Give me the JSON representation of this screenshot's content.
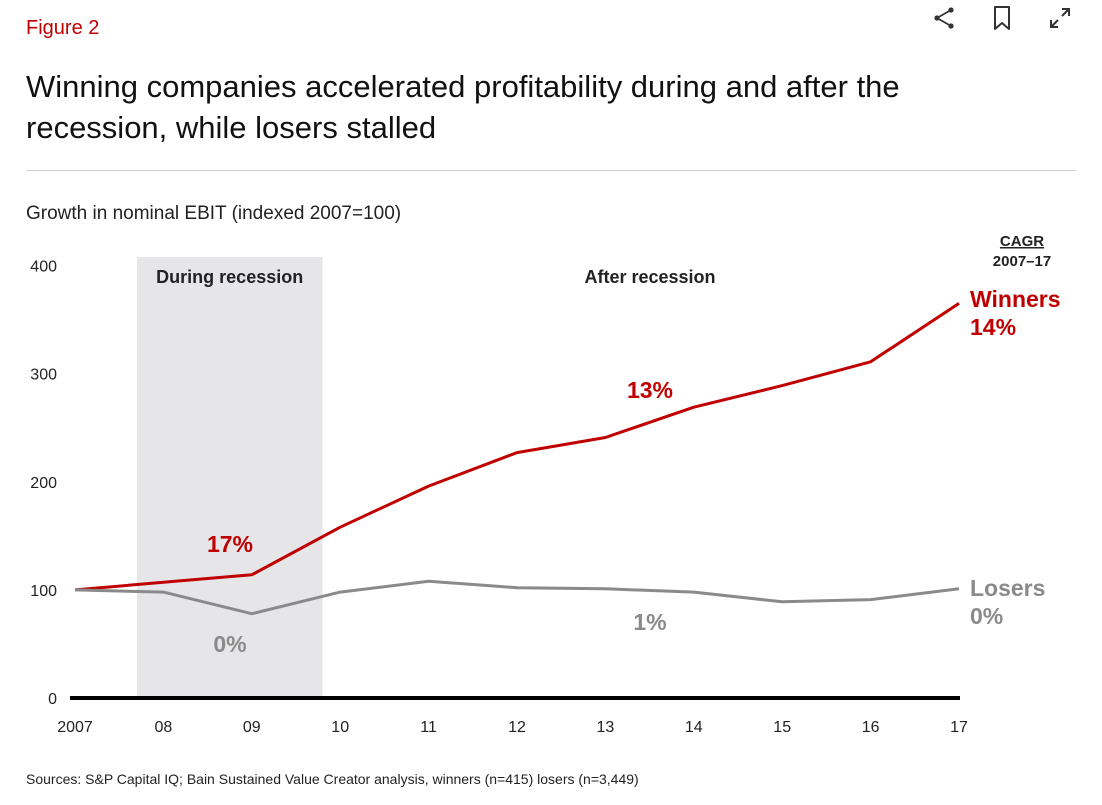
{
  "figure_label": "Figure 2",
  "title": "Winning companies accelerated profitability during and after the recession, while losers stalled",
  "toolbar": {
    "icons": [
      "share-icon",
      "bookmark-icon",
      "expand-icon"
    ]
  },
  "colors": {
    "winners": "#c00000",
    "losers": "#8a8a8a",
    "recession_band": "#e6e6e9",
    "axis": "#000000"
  },
  "chart_data": {
    "type": "line",
    "subtitle": "Growth in nominal EBIT (indexed 2007=100)",
    "x": [
      "2007",
      "08",
      "09",
      "10",
      "11",
      "12",
      "13",
      "14",
      "15",
      "16",
      "17"
    ],
    "ylim": [
      0,
      400
    ],
    "yticks": [
      "0",
      "100",
      "200",
      "300",
      "400"
    ],
    "grid": false,
    "series": [
      {
        "name": "Winners",
        "cagr": "14%",
        "values": [
          100,
          107,
          114,
          158,
          196,
          227,
          241,
          269,
          289,
          311,
          365
        ]
      },
      {
        "name": "Losers",
        "cagr": "0%",
        "values": [
          100,
          98,
          78,
          98,
          108,
          102,
          101,
          98,
          89,
          91,
          101
        ]
      }
    ],
    "regions": [
      {
        "label": "During recession",
        "from": 0.7,
        "to": 2.8,
        "winners_ann": "17%",
        "losers_ann": "0%"
      },
      {
        "label": "After recession",
        "winners_ann": "13%",
        "losers_ann": "1%"
      }
    ],
    "cagr_header": {
      "line1": "CAGR",
      "line2": "2007–17"
    }
  },
  "source": "Sources: S&P Capital IQ; Bain Sustained Value Creator analysis, winners (n=415) losers (n=3,449)"
}
